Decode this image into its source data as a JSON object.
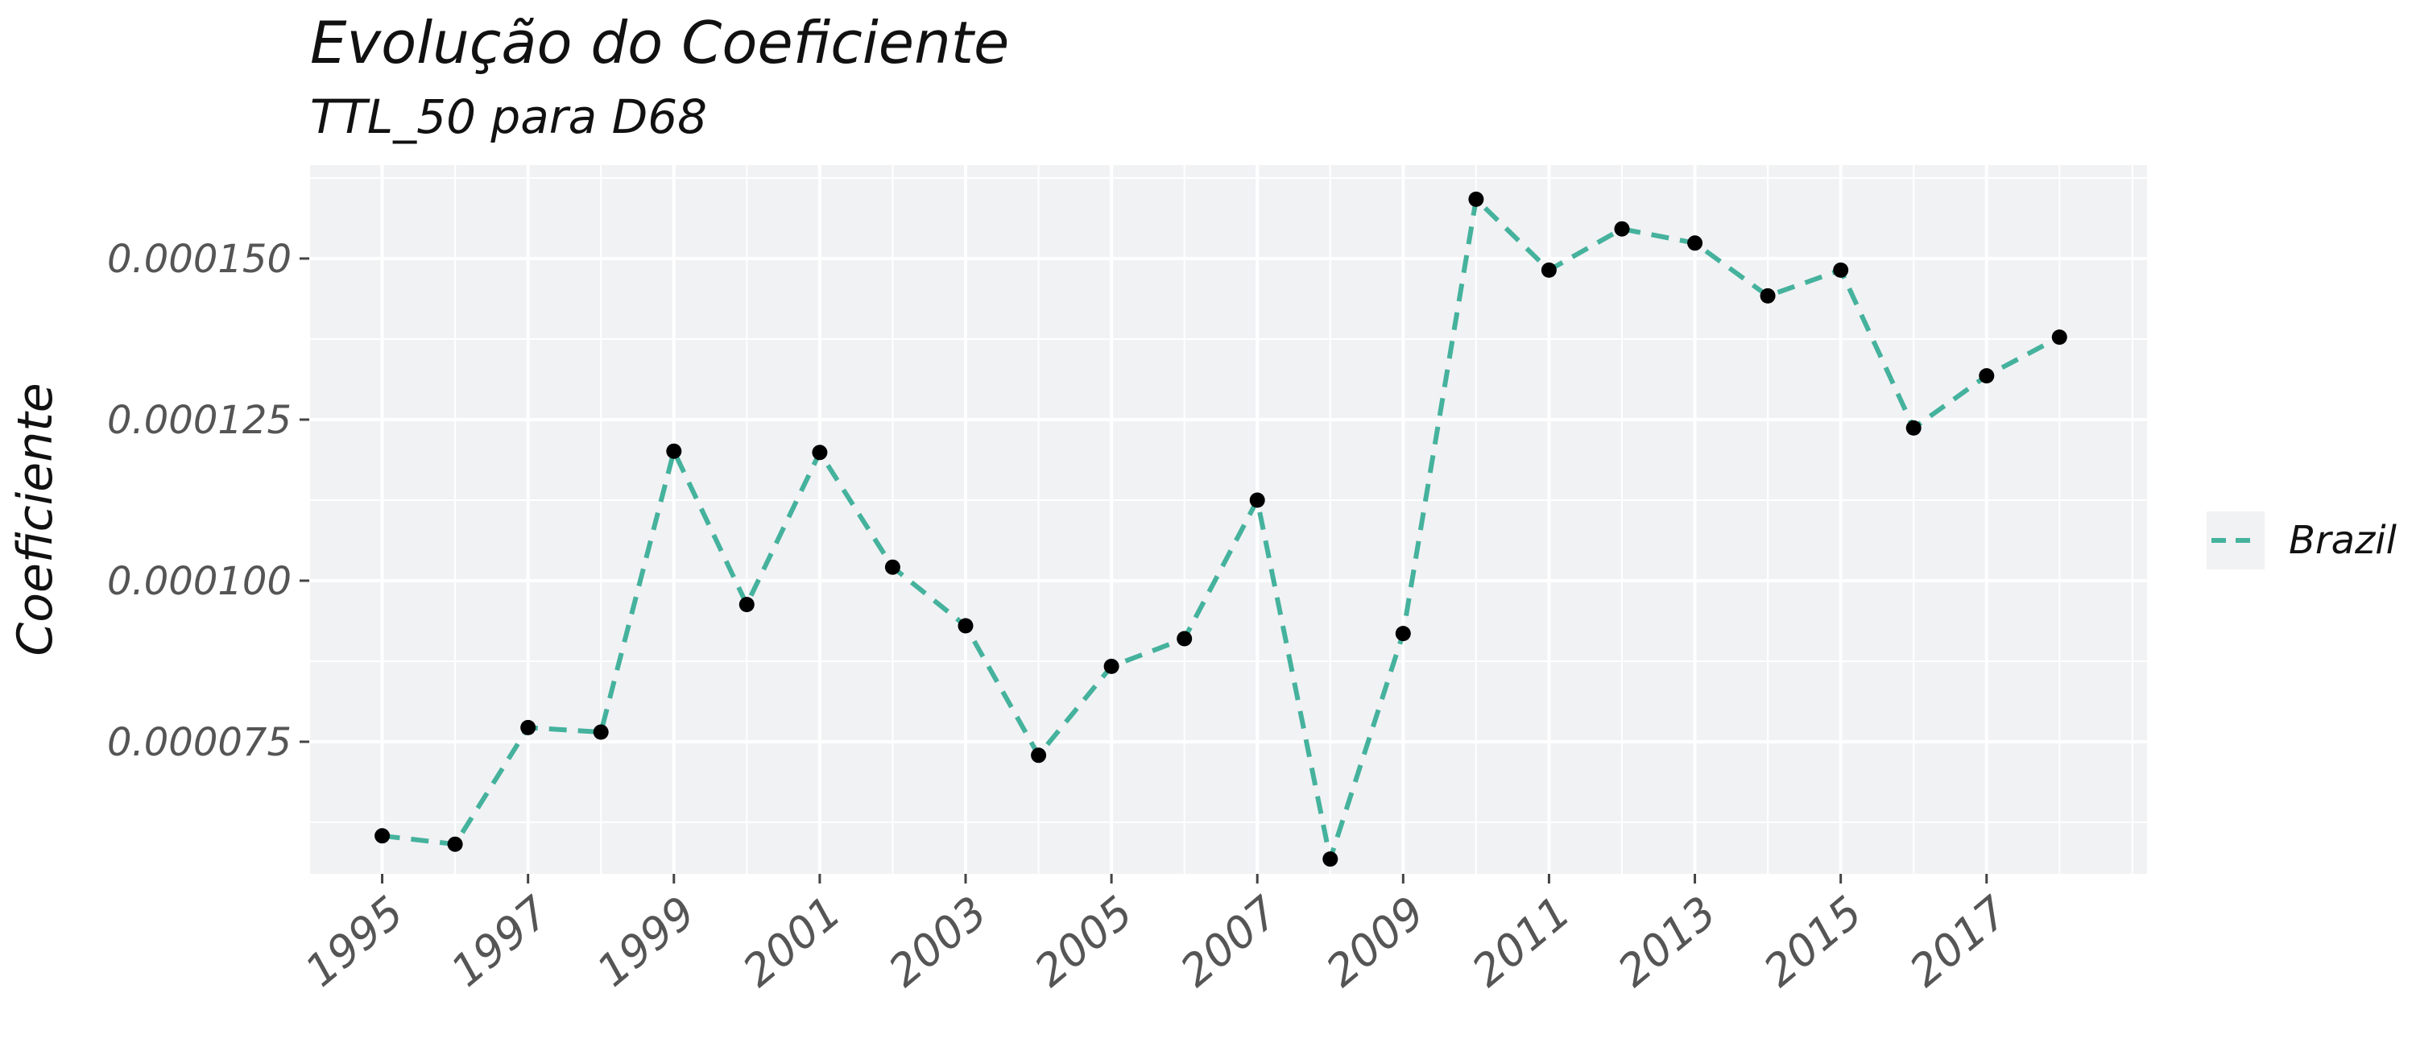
{
  "chart_data": {
    "type": "line",
    "title": "Evolução do Coeficiente",
    "subtitle": "TTL_50 para D68",
    "xlabel": "",
    "ylabel": "Coeficiente",
    "x": [
      1995,
      1996,
      1997,
      1998,
      1999,
      2000,
      2001,
      2002,
      2003,
      2004,
      2005,
      2006,
      2007,
      2008,
      2009,
      2010,
      2011,
      2012,
      2013,
      2014,
      2015,
      2016,
      2017,
      2018
    ],
    "series": [
      {
        "name": "Brazil",
        "color": "#45b29d",
        "line_style": "dashed",
        "values": [
          6.04e-05,
          5.91e-05,
          7.72e-05,
          7.65e-05,
          0.0001201,
          9.63e-05,
          0.0001199,
          0.0001021,
          9.3e-05,
          7.29e-05,
          8.67e-05,
          9.1e-05,
          0.0001125,
          5.68e-05,
          9.18e-05,
          0.0001592,
          0.0001482,
          0.0001546,
          0.0001524,
          0.0001442,
          0.0001482,
          0.0001237,
          0.0001318,
          0.0001378
        ]
      }
    ],
    "x_ticks": [
      "1995",
      "1997",
      "1999",
      "2001",
      "2003",
      "2005",
      "2007",
      "2009",
      "2011",
      "2013",
      "2015",
      "2017"
    ],
    "y_ticks": [
      {
        "value": 7.5e-05,
        "label": "0.000075"
      },
      {
        "value": 0.0001,
        "label": "0.000100"
      },
      {
        "value": 0.000125,
        "label": "0.000125"
      },
      {
        "value": 0.00015,
        "label": "0.000150"
      }
    ],
    "xlim": [
      1994,
      2019.2
    ],
    "ylim": [
      5.45e-05,
      0.0001645
    ],
    "grid": true,
    "legend_position": "right",
    "colors": {
      "panel": "#f1f2f4",
      "grid": "#ffffff",
      "point": "#000000"
    }
  }
}
